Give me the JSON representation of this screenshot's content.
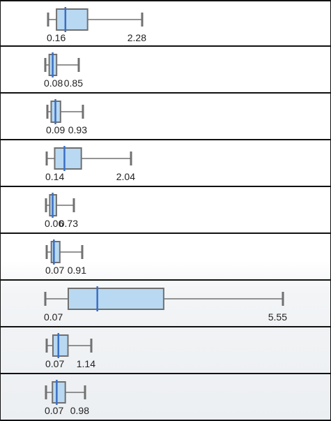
{
  "chart_data": {
    "type": "boxplot",
    "rows": [
      {
        "min": 0.16,
        "q1": 0.35,
        "median": 0.55,
        "q3": 1.05,
        "max": 2.28,
        "min_label": "0.16",
        "max_label": "2.28"
      },
      {
        "min": 0.08,
        "q1": 0.17,
        "median": 0.25,
        "q3": 0.34,
        "max": 0.85,
        "min_label": "0.08",
        "max_label": "0.85"
      },
      {
        "min": 0.09,
        "q1": 0.18,
        "median": 0.28,
        "q3": 0.4,
        "max": 0.93,
        "min_label": "0.09",
        "max_label": "0.93"
      },
      {
        "min": 0.14,
        "q1": 0.32,
        "median": 0.54,
        "q3": 0.92,
        "max": 2.04,
        "min_label": "0.14",
        "max_label": "2.04"
      },
      {
        "min": 0.06,
        "q1": 0.15,
        "median": 0.22,
        "q3": 0.31,
        "max": 0.73,
        "min_label": "0.06",
        "max_label": "0.73"
      },
      {
        "min": 0.07,
        "q1": 0.18,
        "median": 0.24,
        "q3": 0.38,
        "max": 0.91,
        "min_label": "0.07",
        "max_label": "0.91"
      },
      {
        "min": 0.07,
        "q1": 0.6,
        "median": 1.27,
        "q3": 2.8,
        "max": 5.55,
        "min_label": "0.07",
        "max_label": "5.55"
      },
      {
        "min": 0.07,
        "q1": 0.22,
        "median": 0.35,
        "q3": 0.58,
        "max": 1.14,
        "min_label": "0.07",
        "max_label": "1.14"
      },
      {
        "min": 0.07,
        "q1": 0.22,
        "median": 0.32,
        "q3": 0.52,
        "max": 0.98,
        "min_label": "0.07",
        "max_label": "0.98"
      }
    ],
    "colors": {
      "box_fill": "#b9d9f2",
      "box_stroke": "#707070",
      "median": "#3a6fc4",
      "whisker": "#707070"
    }
  }
}
